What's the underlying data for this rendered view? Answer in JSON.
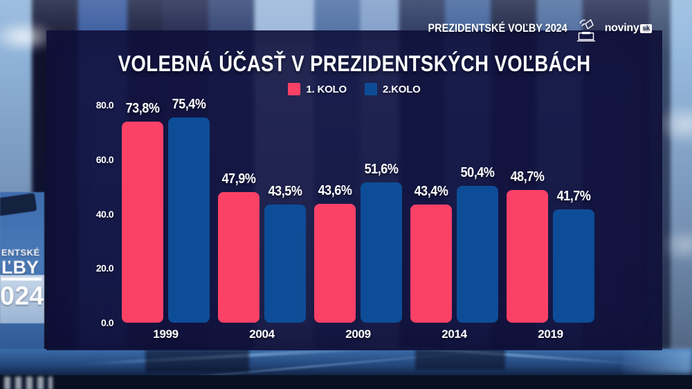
{
  "header": {
    "badge_title": "PREZIDENTSKÉ VOĽBY 2024",
    "logo": {
      "text": "noviny",
      "suffix": "sk"
    }
  },
  "chart": {
    "title": "VOLEBNÁ ÚČASŤ V PREZIDENTSKÝCH VOĽBÁCH"
  },
  "chart_data": {
    "type": "bar",
    "title": "VOLEBNÁ ÚČASŤ V PREZIDENTSKÝCH VOĽBÁCH",
    "categories": [
      "1999",
      "2004",
      "2009",
      "2014",
      "2019"
    ],
    "series": [
      {
        "name": "1. KOLO",
        "color": "#FC4167",
        "values": [
          73.8,
          47.9,
          43.6,
          43.4,
          48.7
        ],
        "labels": [
          "73,8%",
          "47,9%",
          "43,6%",
          "43,4%",
          "48,7%"
        ]
      },
      {
        "name": "2.KOLO",
        "color": "#0D4D97",
        "values": [
          75.4,
          43.5,
          51.6,
          50.4,
          41.7
        ],
        "labels": [
          "75,4%",
          "43,5%",
          "51,6%",
          "50,4%",
          "41,7%"
        ]
      }
    ],
    "y_ticks": [
      {
        "value": 80,
        "label": "80.0"
      },
      {
        "value": 60,
        "label": "60.0"
      },
      {
        "value": 40,
        "label": "40.0"
      },
      {
        "value": 20,
        "label": "20.0"
      },
      {
        "value": 0,
        "label": "0.0"
      }
    ],
    "ylim": [
      0,
      80
    ],
    "grid": false,
    "legend_position": "top-center",
    "value_suffix": "%"
  },
  "background": {
    "wall_text": {
      "line1": "ENTSKÉ",
      "line2": "ĽBY",
      "line3": "024"
    }
  }
}
